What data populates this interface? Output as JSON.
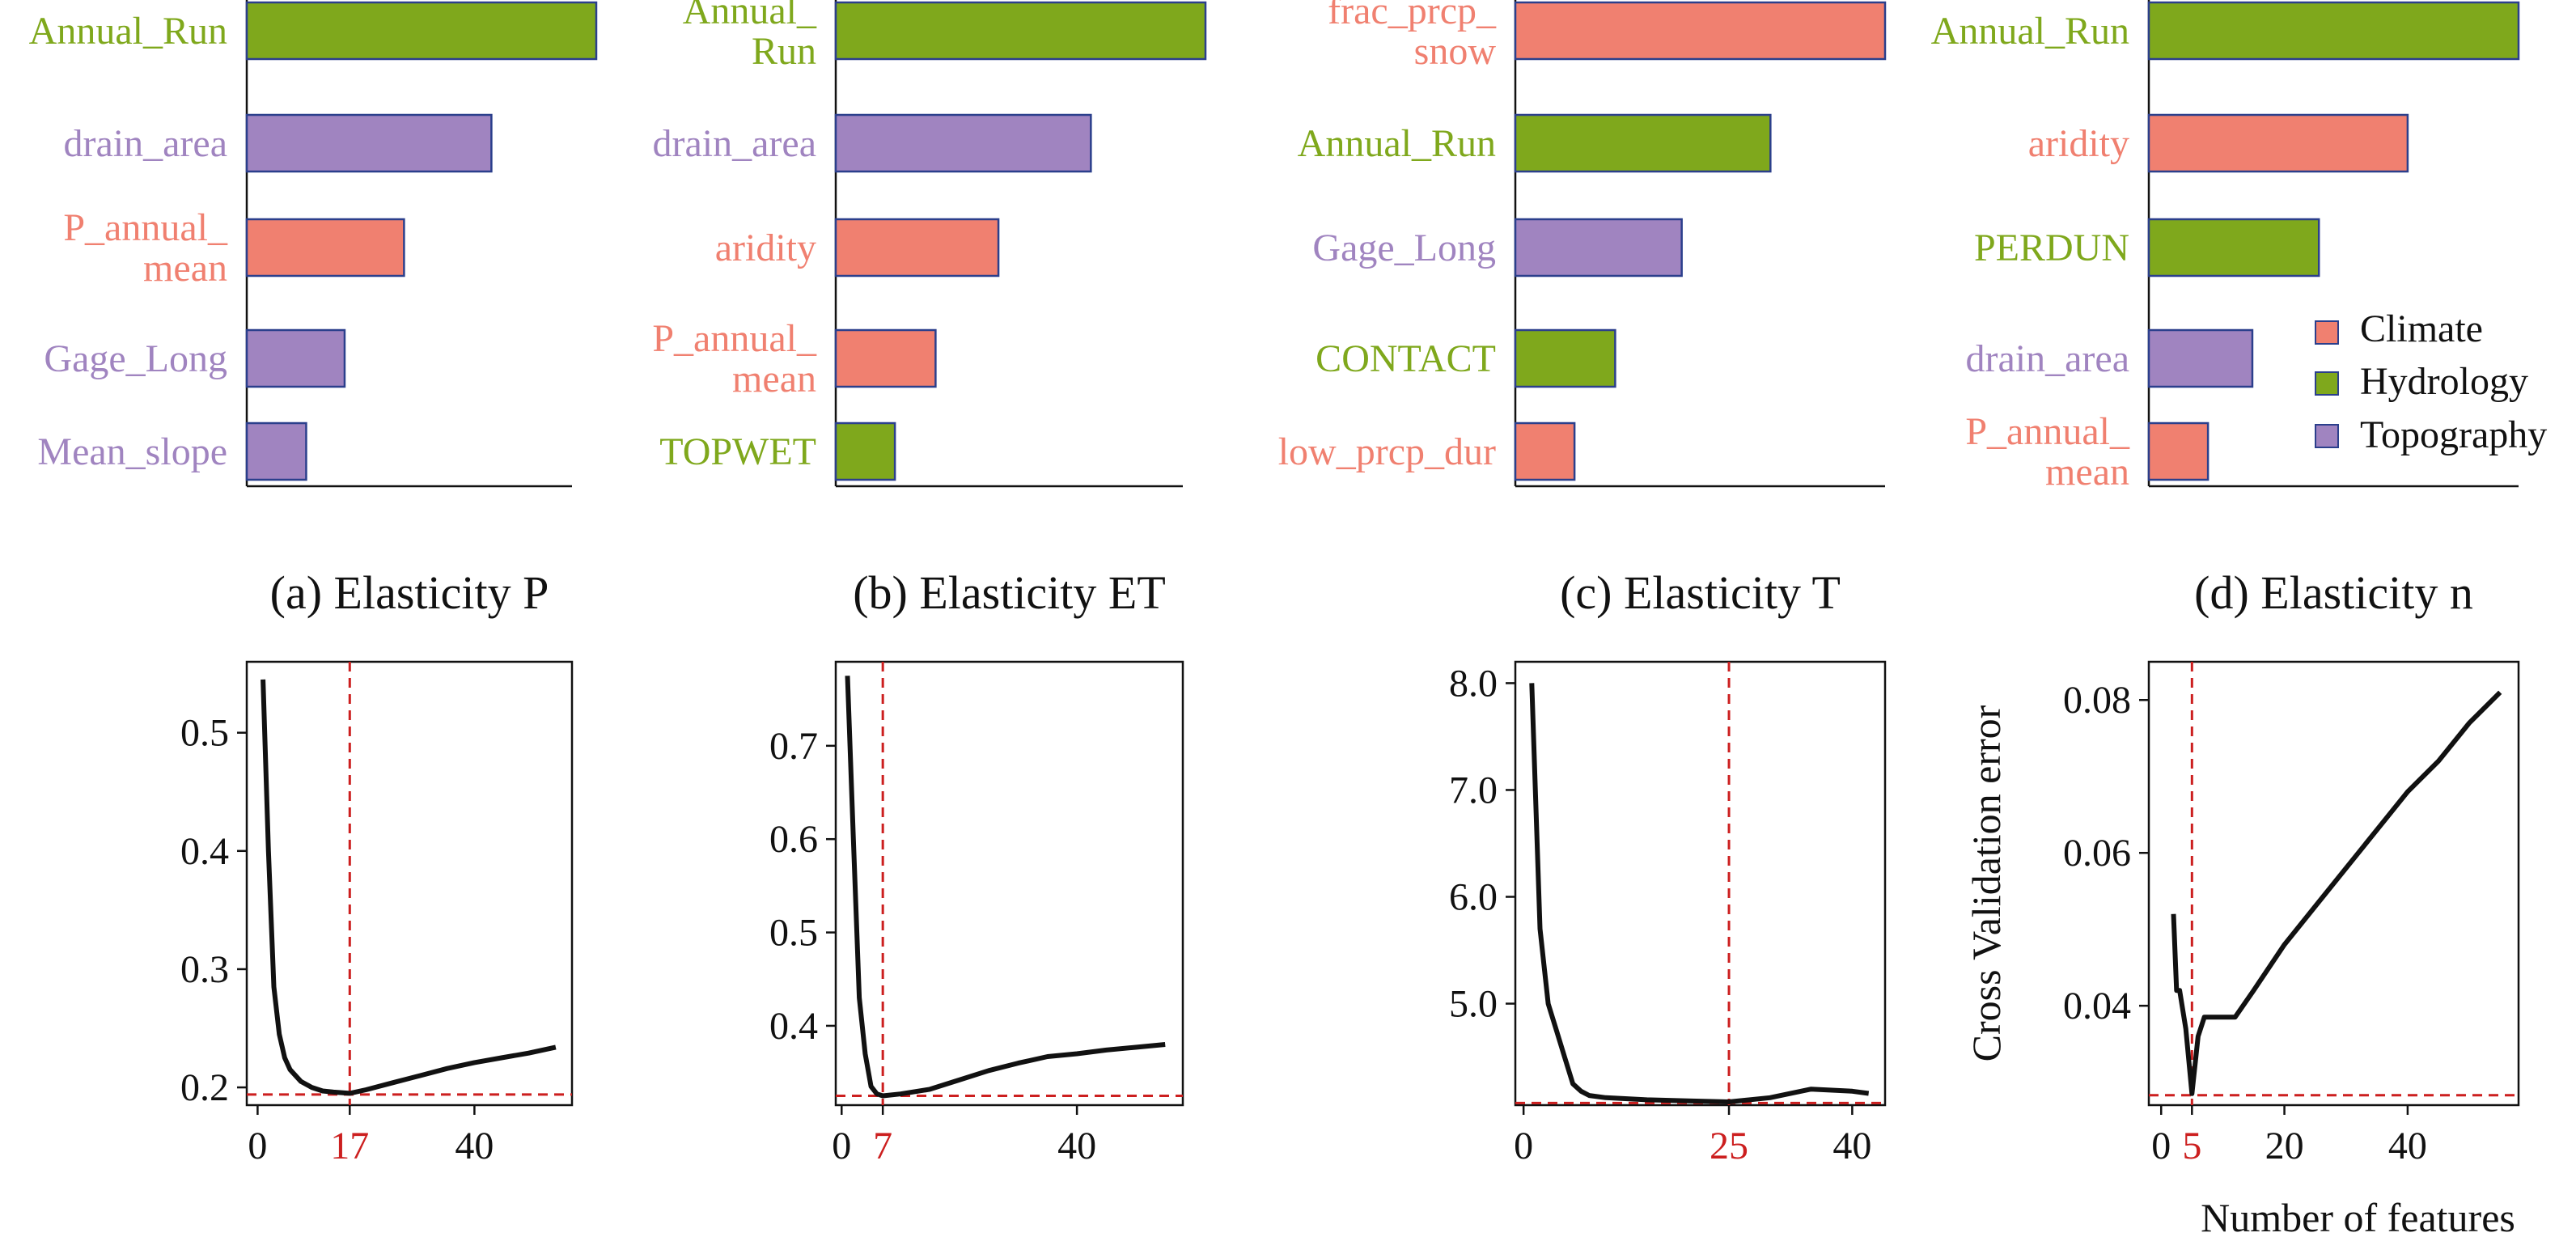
{
  "colors": {
    "Climate": "#f08070",
    "Hydrology": "#7fa81c",
    "Topography": "#a084c0",
    "bar_edge": "#2b3f8c",
    "ref_line": "#cc1f1f",
    "curve": "#111111"
  },
  "legend": {
    "entries": [
      {
        "label": "Climate",
        "category": "Climate"
      },
      {
        "label": "Hydrology",
        "category": "Hydrology"
      },
      {
        "label": "Topography",
        "category": "Topography"
      }
    ]
  },
  "chart_data": [
    {
      "type": "bar",
      "panel": "a",
      "orientation": "horizontal",
      "bars": [
        {
          "label": [
            "Annual_Run"
          ],
          "value": 1.0,
          "category": "Hydrology"
        },
        {
          "label": [
            "drain_area"
          ],
          "value": 0.7,
          "category": "Topography"
        },
        {
          "label": [
            "P_annual_",
            "mean"
          ],
          "value": 0.45,
          "category": "Climate"
        },
        {
          "label": [
            "Gage_Long"
          ],
          "value": 0.28,
          "category": "Topography"
        },
        {
          "label": [
            "Mean_slope"
          ],
          "value": 0.17,
          "category": "Topography"
        }
      ]
    },
    {
      "type": "bar",
      "panel": "b",
      "orientation": "horizontal",
      "bars": [
        {
          "label": [
            "Annual_",
            "Run"
          ],
          "value": 1.0,
          "category": "Hydrology"
        },
        {
          "label": [
            "drain_area"
          ],
          "value": 0.69,
          "category": "Topography"
        },
        {
          "label": [
            "aridity"
          ],
          "value": 0.44,
          "category": "Climate"
        },
        {
          "label": [
            "P_annual_",
            "mean"
          ],
          "value": 0.27,
          "category": "Climate"
        },
        {
          "label": [
            "TOPWET"
          ],
          "value": 0.16,
          "category": "Hydrology"
        }
      ]
    },
    {
      "type": "bar",
      "panel": "c",
      "orientation": "horizontal",
      "bars": [
        {
          "label": [
            "frac_prcp_",
            "snow"
          ],
          "value": 1.0,
          "category": "Climate"
        },
        {
          "label": [
            "Annual_Run"
          ],
          "value": 0.69,
          "category": "Hydrology"
        },
        {
          "label": [
            "Gage_Long"
          ],
          "value": 0.45,
          "category": "Topography"
        },
        {
          "label": [
            "CONTACT"
          ],
          "value": 0.27,
          "category": "Hydrology"
        },
        {
          "label": [
            "low_prcp_dur"
          ],
          "value": 0.16,
          "category": "Climate"
        }
      ]
    },
    {
      "type": "bar",
      "panel": "d",
      "orientation": "horizontal",
      "bars": [
        {
          "label": [
            "Annual_Run"
          ],
          "value": 1.0,
          "category": "Hydrology"
        },
        {
          "label": [
            "aridity"
          ],
          "value": 0.7,
          "category": "Climate"
        },
        {
          "label": [
            "PERDUN"
          ],
          "value": 0.46,
          "category": "Hydrology"
        },
        {
          "label": [
            "drain_area"
          ],
          "value": 0.28,
          "category": "Topography"
        },
        {
          "label": [
            "P_annual_",
            "mean"
          ],
          "value": 0.16,
          "category": "Climate"
        }
      ]
    },
    {
      "type": "line",
      "panel": "a",
      "title": "(a) Elasticity P",
      "xlim": [
        -2,
        58
      ],
      "ylim": [
        0.185,
        0.56
      ],
      "xticks": [
        {
          "value": 0,
          "label": "0"
        },
        {
          "value": 17,
          "label": "17",
          "highlight": true
        },
        {
          "value": 40,
          "label": "40"
        }
      ],
      "yticks": [
        {
          "value": 0.2,
          "label": "0.2"
        },
        {
          "value": 0.3,
          "label": "0.3"
        },
        {
          "value": 0.4,
          "label": "0.4"
        },
        {
          "value": 0.5,
          "label": "0.5"
        }
      ],
      "vline": 17,
      "hline": 0.194,
      "x": [
        1,
        2,
        3,
        4,
        5,
        6,
        8,
        10,
        12,
        14,
        17,
        20,
        25,
        30,
        35,
        40,
        45,
        50,
        55
      ],
      "y": [
        0.545,
        0.4,
        0.285,
        0.245,
        0.225,
        0.215,
        0.205,
        0.2,
        0.197,
        0.196,
        0.195,
        0.198,
        0.204,
        0.21,
        0.216,
        0.221,
        0.225,
        0.229,
        0.234
      ]
    },
    {
      "type": "line",
      "panel": "b",
      "title": "(b) Elasticity ET",
      "xlim": [
        -1,
        58
      ],
      "ylim": [
        0.315,
        0.79
      ],
      "xticks": [
        {
          "value": 0,
          "label": "0"
        },
        {
          "value": 7,
          "label": "7",
          "highlight": true
        },
        {
          "value": 40,
          "label": "40"
        }
      ],
      "yticks": [
        {
          "value": 0.4,
          "label": "0.4"
        },
        {
          "value": 0.5,
          "label": "0.5"
        },
        {
          "value": 0.6,
          "label": "0.6"
        },
        {
          "value": 0.7,
          "label": "0.7"
        }
      ],
      "vline": 7,
      "hline": 0.325,
      "x": [
        1,
        2,
        3,
        4,
        5,
        6,
        7,
        10,
        15,
        20,
        25,
        30,
        35,
        40,
        45,
        50,
        55
      ],
      "y": [
        0.775,
        0.6,
        0.43,
        0.37,
        0.335,
        0.327,
        0.325,
        0.327,
        0.332,
        0.342,
        0.352,
        0.36,
        0.367,
        0.37,
        0.374,
        0.377,
        0.38
      ]
    },
    {
      "type": "line",
      "panel": "c",
      "title": "(c) Elasticity T",
      "xlim": [
        -1,
        44
      ],
      "ylim": [
        4.05,
        8.2
      ],
      "xticks": [
        {
          "value": 0,
          "label": "0"
        },
        {
          "value": 25,
          "label": "25",
          "highlight": true
        },
        {
          "value": 40,
          "label": "40"
        }
      ],
      "yticks": [
        {
          "value": 5.0,
          "label": "5.0"
        },
        {
          "value": 6.0,
          "label": "6.0"
        },
        {
          "value": 7.0,
          "label": "7.0"
        },
        {
          "value": 8.0,
          "label": "8.0"
        }
      ],
      "vline": 25,
      "hline": 4.07,
      "x": [
        1,
        2,
        3,
        4,
        5,
        6,
        7,
        8,
        10,
        15,
        20,
        25,
        30,
        35,
        40,
        42
      ],
      "y": [
        8.0,
        5.7,
        5.0,
        4.75,
        4.5,
        4.25,
        4.18,
        4.14,
        4.12,
        4.1,
        4.09,
        4.08,
        4.12,
        4.2,
        4.18,
        4.16
      ]
    },
    {
      "type": "line",
      "panel": "d",
      "title": "(d) Elasticity n",
      "xlabel": "Number of features",
      "ylabel": "Cross Validation error",
      "xlim": [
        -2,
        58
      ],
      "ylim": [
        0.027,
        0.085
      ],
      "xticks": [
        {
          "value": 0,
          "label": "0"
        },
        {
          "value": 5,
          "label": "5",
          "highlight": true
        },
        {
          "value": 20,
          "label": "20"
        },
        {
          "value": 40,
          "label": "40"
        }
      ],
      "yticks": [
        {
          "value": 0.04,
          "label": "0.04"
        },
        {
          "value": 0.06,
          "label": "0.06"
        },
        {
          "value": 0.08,
          "label": "0.08"
        }
      ],
      "vline": 5,
      "hline": 0.0283,
      "x": [
        2,
        2.5,
        3,
        4,
        5,
        6,
        7,
        8,
        10,
        12,
        15,
        20,
        25,
        30,
        35,
        40,
        45,
        50,
        55
      ],
      "y": [
        0.052,
        0.042,
        0.042,
        0.037,
        0.0285,
        0.036,
        0.0385,
        0.0385,
        0.0385,
        0.0385,
        0.042,
        0.048,
        0.053,
        0.058,
        0.063,
        0.068,
        0.072,
        0.077,
        0.081
      ]
    }
  ]
}
